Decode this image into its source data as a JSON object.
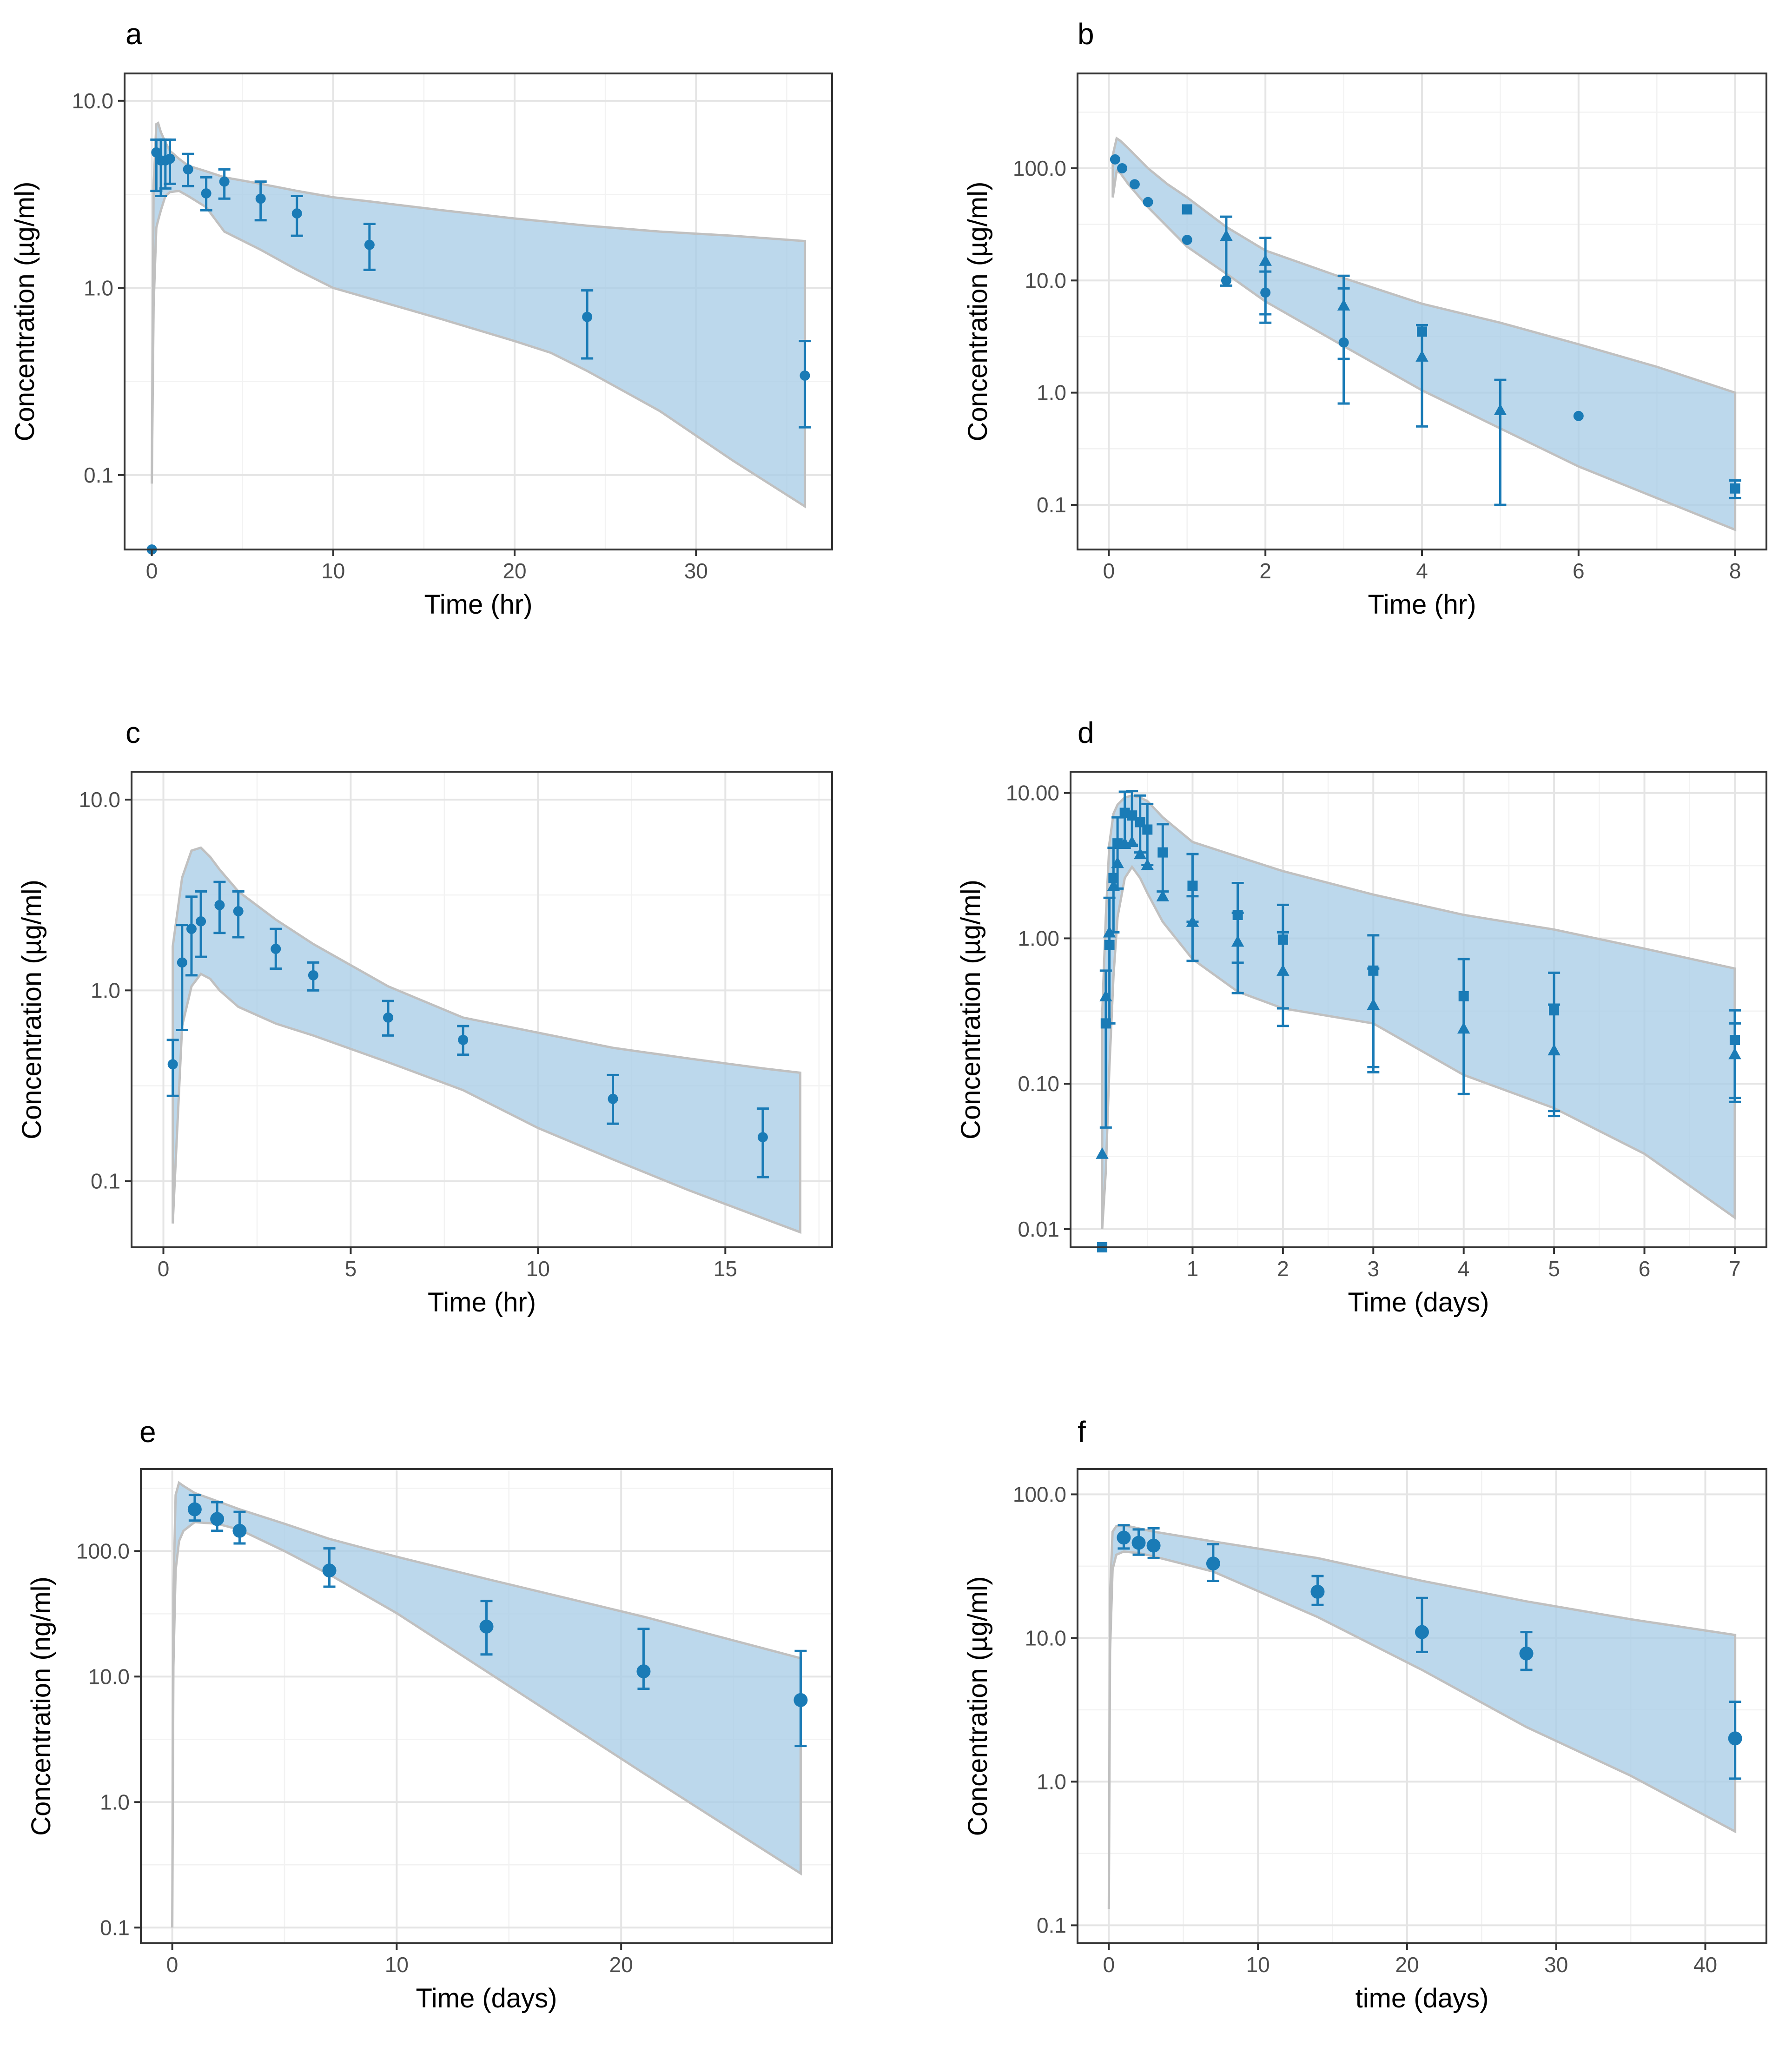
{
  "colors": {
    "point": "#1a7bb6",
    "band_fill": "#a6cbe6",
    "band_stroke": "#c0c0c0",
    "grid": "#e5e5e5",
    "frame": "#333333"
  },
  "chart_data": [
    {
      "id": "a",
      "panel_label": "a",
      "type": "scatter",
      "xlabel": "Time (hr)",
      "ylabel": "Concentration (µg/ml)",
      "xlim": [
        -1.5,
        37.5
      ],
      "ylim": [
        0.04,
        14
      ],
      "xticks": [
        0,
        10,
        20,
        30
      ],
      "xtick_labels": [
        "0",
        "10",
        "20",
        "30"
      ],
      "yticks": [
        0.1,
        1,
        10
      ],
      "ytick_labels": [
        "0.1",
        "1.0",
        "10.0"
      ],
      "band": {
        "x": [
          0,
          0.1,
          0.25,
          0.35,
          0.5,
          0.75,
          1,
          1.5,
          2,
          3,
          4,
          6,
          8,
          10,
          12,
          16,
          20,
          22,
          24,
          28,
          32,
          36
        ],
        "upper": [
          0.09,
          3.5,
          7.5,
          7.6,
          6.8,
          6.0,
          5.4,
          4.9,
          4.5,
          4.2,
          3.9,
          3.6,
          3.3,
          3.05,
          2.9,
          2.6,
          2.35,
          2.25,
          2.15,
          2.0,
          1.9,
          1.78
        ],
        "lower": [
          0.09,
          0.8,
          2.1,
          2.3,
          2.6,
          3.1,
          3.25,
          3.3,
          3.1,
          2.7,
          2.0,
          1.6,
          1.25,
          1.0,
          0.88,
          0.68,
          0.52,
          0.45,
          0.36,
          0.22,
          0.12,
          0.068
        ]
      },
      "series": [
        {
          "name": "observed",
          "marker": "circle",
          "x": [
            0,
            0.25,
            0.5,
            0.75,
            1,
            2,
            3,
            4,
            6,
            8,
            12,
            24,
            36
          ],
          "y": [
            0.04,
            5.3,
            4.8,
            4.8,
            4.9,
            4.3,
            3.2,
            3.7,
            3.0,
            2.5,
            1.7,
            0.7,
            0.34
          ],
          "err_low": [
            null,
            3.3,
            3.1,
            3.4,
            3.6,
            3.5,
            2.6,
            3.0,
            2.3,
            1.9,
            1.25,
            0.42,
            0.18
          ],
          "err_high": [
            null,
            6.2,
            6.2,
            6.2,
            6.2,
            5.2,
            3.9,
            4.3,
            3.7,
            3.1,
            2.2,
            0.97,
            0.52
          ]
        }
      ]
    },
    {
      "id": "b",
      "panel_label": "b",
      "type": "scatter",
      "xlabel": "Time (hr)",
      "ylabel": "Concentration (µg/ml)",
      "xlim": [
        -0.4,
        8.4
      ],
      "ylim": [
        0.04,
        700
      ],
      "xticks": [
        0,
        2,
        4,
        6,
        8
      ],
      "xtick_labels": [
        "0",
        "2",
        "4",
        "6",
        "8"
      ],
      "yticks": [
        0.1,
        1,
        10,
        100
      ],
      "ytick_labels": [
        "0.1",
        "1.0",
        "10.0",
        "100.0"
      ],
      "band": {
        "x": [
          0.05,
          0.1,
          0.15,
          0.25,
          0.5,
          0.75,
          1,
          1.5,
          2,
          3,
          4,
          5,
          6,
          7,
          8
        ],
        "upper": [
          130,
          185,
          175,
          150,
          100,
          72,
          55,
          30,
          18.5,
          10.5,
          6.2,
          4.2,
          2.7,
          1.7,
          1.0
        ],
        "lower": [
          55,
          95,
          90,
          72,
          45,
          30,
          20,
          11.5,
          6.5,
          2.6,
          1.05,
          0.48,
          0.22,
          0.115,
          0.06
        ]
      },
      "series": [
        {
          "name": "circles",
          "marker": "circle",
          "x": [
            0.08,
            0.17,
            0.33,
            0.5,
            1,
            1.5,
            2,
            3,
            6
          ],
          "y": [
            120,
            100,
            72,
            50,
            23,
            10,
            7.8,
            2.8,
            0.62
          ],
          "err_low": [
            null,
            null,
            null,
            null,
            null,
            null,
            4.2,
            0.8,
            null
          ],
          "err_high": [
            null,
            null,
            null,
            null,
            null,
            null,
            12,
            8.5,
            null
          ]
        },
        {
          "name": "squares",
          "marker": "square",
          "x": [
            1,
            4,
            8
          ],
          "y": [
            43,
            3.5,
            0.14
          ],
          "err_low": [
            null,
            null,
            0.115
          ],
          "err_high": [
            null,
            null,
            0.165
          ]
        },
        {
          "name": "triangles",
          "marker": "triangle",
          "x": [
            1.5,
            2,
            3,
            4,
            5
          ],
          "y": [
            25,
            15,
            6,
            2.1,
            0.7
          ],
          "err_low": [
            9,
            5,
            2,
            0.5,
            0.1
          ],
          "err_high": [
            37,
            24,
            11,
            4,
            1.3
          ]
        }
      ]
    },
    {
      "id": "c",
      "panel_label": "c",
      "type": "scatter",
      "xlabel": "Time (hr)",
      "ylabel": "Concentration (µg/ml)",
      "xlim": [
        -0.85,
        17.85
      ],
      "ylim": [
        0.045,
        14
      ],
      "xticks": [
        0,
        5,
        10,
        15
      ],
      "xtick_labels": [
        "0",
        "5",
        "10",
        "15"
      ],
      "yticks": [
        0.1,
        1,
        10
      ],
      "ytick_labels": [
        "0.1",
        "1.0",
        "10.0"
      ],
      "band": {
        "x": [
          0.25,
          0.5,
          0.75,
          1,
          1.25,
          1.5,
          2,
          3,
          4,
          6,
          8,
          10,
          12,
          14,
          16,
          17
        ],
        "upper": [
          1.7,
          3.9,
          5.4,
          5.6,
          5.0,
          4.3,
          3.3,
          2.35,
          1.75,
          1.05,
          0.72,
          0.6,
          0.5,
          0.44,
          0.39,
          0.37
        ],
        "lower": [
          0.06,
          0.65,
          1.05,
          1.22,
          1.15,
          1.0,
          0.82,
          0.67,
          0.58,
          0.42,
          0.3,
          0.19,
          0.13,
          0.09,
          0.064,
          0.054
        ]
      },
      "series": [
        {
          "name": "observed",
          "marker": "circle",
          "x": [
            0.25,
            0.5,
            0.75,
            1,
            1.5,
            2,
            3,
            4,
            6,
            8,
            12,
            16
          ],
          "y": [
            0.41,
            1.4,
            2.1,
            2.3,
            2.8,
            2.6,
            1.65,
            1.2,
            0.72,
            0.55,
            0.27,
            0.17
          ],
          "err_low": [
            0.28,
            0.62,
            1.2,
            1.5,
            2.0,
            1.9,
            1.3,
            1.0,
            0.58,
            0.46,
            0.2,
            0.105
          ],
          "err_high": [
            0.55,
            2.2,
            3.1,
            3.3,
            3.7,
            3.3,
            2.1,
            1.4,
            0.88,
            0.65,
            0.36,
            0.24
          ]
        }
      ]
    },
    {
      "id": "d",
      "panel_label": "d",
      "type": "scatter",
      "xlabel": "Time (days)",
      "ylabel": "Concentration (µg/ml)",
      "xlim": [
        -0.35,
        7.35
      ],
      "ylim": [
        0.0075,
        14
      ],
      "xticks": [
        1,
        2,
        3,
        4,
        5,
        6,
        7
      ],
      "xtick_labels": [
        "1",
        "2",
        "3",
        "4",
        "5",
        "6",
        "7"
      ],
      "yticks": [
        0.01,
        0.1,
        1,
        10
      ],
      "ytick_labels": [
        "0.01",
        "0.10",
        "1.00",
        "10.00"
      ],
      "band": {
        "x": [
          0,
          0.04,
          0.08,
          0.125,
          0.17,
          0.25,
          0.33,
          0.42,
          0.5,
          0.67,
          1,
          1.5,
          2,
          3,
          4,
          5,
          6,
          7
        ],
        "upper": [
          0.3,
          1.4,
          4.5,
          7.2,
          8.3,
          9.3,
          9.6,
          9.3,
          8.8,
          6.8,
          4.6,
          3.65,
          2.9,
          2.0,
          1.45,
          1.15,
          0.85,
          0.62
        ],
        "lower": [
          0.01,
          0.025,
          0.13,
          0.55,
          1.4,
          2.6,
          3.1,
          2.6,
          2.05,
          1.3,
          0.72,
          0.43,
          0.33,
          0.26,
          0.115,
          0.068,
          0.033,
          0.012
        ]
      },
      "series": [
        {
          "name": "squares",
          "marker": "square",
          "x": [
            0,
            0.04,
            0.08,
            0.125,
            0.17,
            0.25,
            0.33,
            0.42,
            0.5,
            0.67,
            1,
            1.5,
            2,
            3,
            4,
            5,
            7
          ],
          "y": [
            0.0075,
            0.26,
            0.9,
            2.6,
            4.5,
            7.3,
            7.0,
            6.3,
            5.6,
            3.9,
            2.3,
            1.45,
            0.98,
            0.6,
            0.4,
            0.32,
            0.2
          ],
          "err_low": [
            null,
            0.05,
            0.26,
            1.1,
            2.2,
            4.2,
            4.4,
            3.9,
            3.2,
            2.1,
            1.3,
            0.68,
            0.33,
            0.13,
            0.085,
            0.06,
            0.08
          ],
          "err_high": [
            null,
            0.6,
            1.9,
            4.2,
            6.8,
            10.2,
            10.3,
            9.6,
            8.4,
            6.1,
            3.8,
            2.4,
            1.7,
            1.05,
            0.72,
            0.58,
            0.32
          ]
        },
        {
          "name": "triangles",
          "marker": "triangle",
          "x": [
            0,
            0.04,
            0.08,
            0.125,
            0.17,
            0.25,
            0.33,
            0.42,
            0.5,
            0.67,
            1,
            1.5,
            2,
            3,
            4,
            5,
            7
          ],
          "y": [
            0.033,
            0.4,
            1.1,
            2.3,
            3.3,
            4.5,
            4.6,
            3.8,
            3.2,
            1.95,
            1.3,
            0.95,
            0.6,
            0.35,
            0.24,
            0.17,
            0.16
          ],
          "err_low": [
            null,
            null,
            null,
            null,
            null,
            null,
            null,
            null,
            null,
            null,
            0.7,
            0.42,
            0.25,
            0.12,
            null,
            0.065,
            0.075
          ],
          "err_high": [
            null,
            null,
            null,
            null,
            null,
            null,
            null,
            null,
            null,
            null,
            1.95,
            1.5,
            1.1,
            0.62,
            null,
            0.35,
            0.26
          ]
        }
      ]
    },
    {
      "id": "e",
      "panel_label": "e",
      "type": "scatter",
      "xlabel": "Time (days)",
      "ylabel": "Concentration (ng/ml)",
      "xlim": [
        -1.4,
        29.4
      ],
      "ylim": [
        0.075,
        450
      ],
      "xticks": [
        0,
        10,
        20
      ],
      "xtick_labels": [
        "0",
        "10",
        "20"
      ],
      "yticks": [
        0.1,
        1,
        10,
        100
      ],
      "ytick_labels": [
        "0.1",
        "1.0",
        "10.0",
        "100.0"
      ],
      "band": {
        "x": [
          0,
          0.05,
          0.15,
          0.3,
          0.5,
          1,
          2,
          3,
          5,
          7,
          10,
          14,
          21,
          28
        ],
        "upper": [
          0.1,
          45,
          280,
          350,
          330,
          290,
          250,
          215,
          165,
          125,
          90,
          60,
          30,
          14
        ],
        "lower": [
          0.1,
          12,
          70,
          120,
          145,
          170,
          165,
          148,
          100,
          65,
          32,
          11,
          1.7,
          0.27
        ]
      },
      "series": [
        {
          "name": "observed",
          "marker": "circle",
          "x": [
            1,
            2,
            3,
            7,
            14,
            21,
            28
          ],
          "y": [
            215,
            180,
            145,
            70,
            25,
            11,
            6.5
          ],
          "err_low": [
            175,
            145,
            115,
            52,
            15,
            8,
            2.8
          ],
          "err_high": [
            280,
            245,
            205,
            105,
            40,
            24,
            16
          ]
        }
      ]
    },
    {
      "id": "f",
      "panel_label": "f",
      "type": "scatter",
      "xlabel": "time (days)",
      "ylabel": "Concentration (µg/ml)",
      "xlim": [
        -2.1,
        44.1
      ],
      "ylim": [
        0.075,
        150
      ],
      "xticks": [
        0,
        10,
        20,
        30,
        40
      ],
      "xtick_labels": [
        "0",
        "10",
        "20",
        "30",
        "40"
      ],
      "yticks": [
        0.1,
        1,
        10,
        100
      ],
      "ytick_labels": [
        "0.1",
        "1.0",
        "10.0",
        "100.0"
      ],
      "band": {
        "x": [
          0,
          0.08,
          0.25,
          0.5,
          1,
          2,
          3,
          7,
          14,
          21,
          28,
          35,
          42
        ],
        "upper": [
          0.13,
          20,
          55,
          60,
          61,
          58,
          55,
          47,
          36,
          25,
          18,
          13.5,
          10.5
        ],
        "lower": [
          0.13,
          8,
          30,
          38,
          40,
          39,
          37,
          29,
          14,
          6,
          2.4,
          1.1,
          0.45
        ]
      },
      "series": [
        {
          "name": "observed",
          "marker": "circle",
          "x": [
            1,
            2,
            3,
            7,
            14,
            21,
            28,
            42
          ],
          "y": [
            50,
            46,
            44,
            33,
            21,
            11,
            7.8,
            2.0
          ],
          "err_low": [
            42,
            38,
            36,
            25,
            17,
            8.0,
            6.0,
            1.05
          ],
          "err_high": [
            61,
            57,
            58,
            45,
            27,
            19,
            11,
            3.6
          ]
        }
      ]
    }
  ]
}
